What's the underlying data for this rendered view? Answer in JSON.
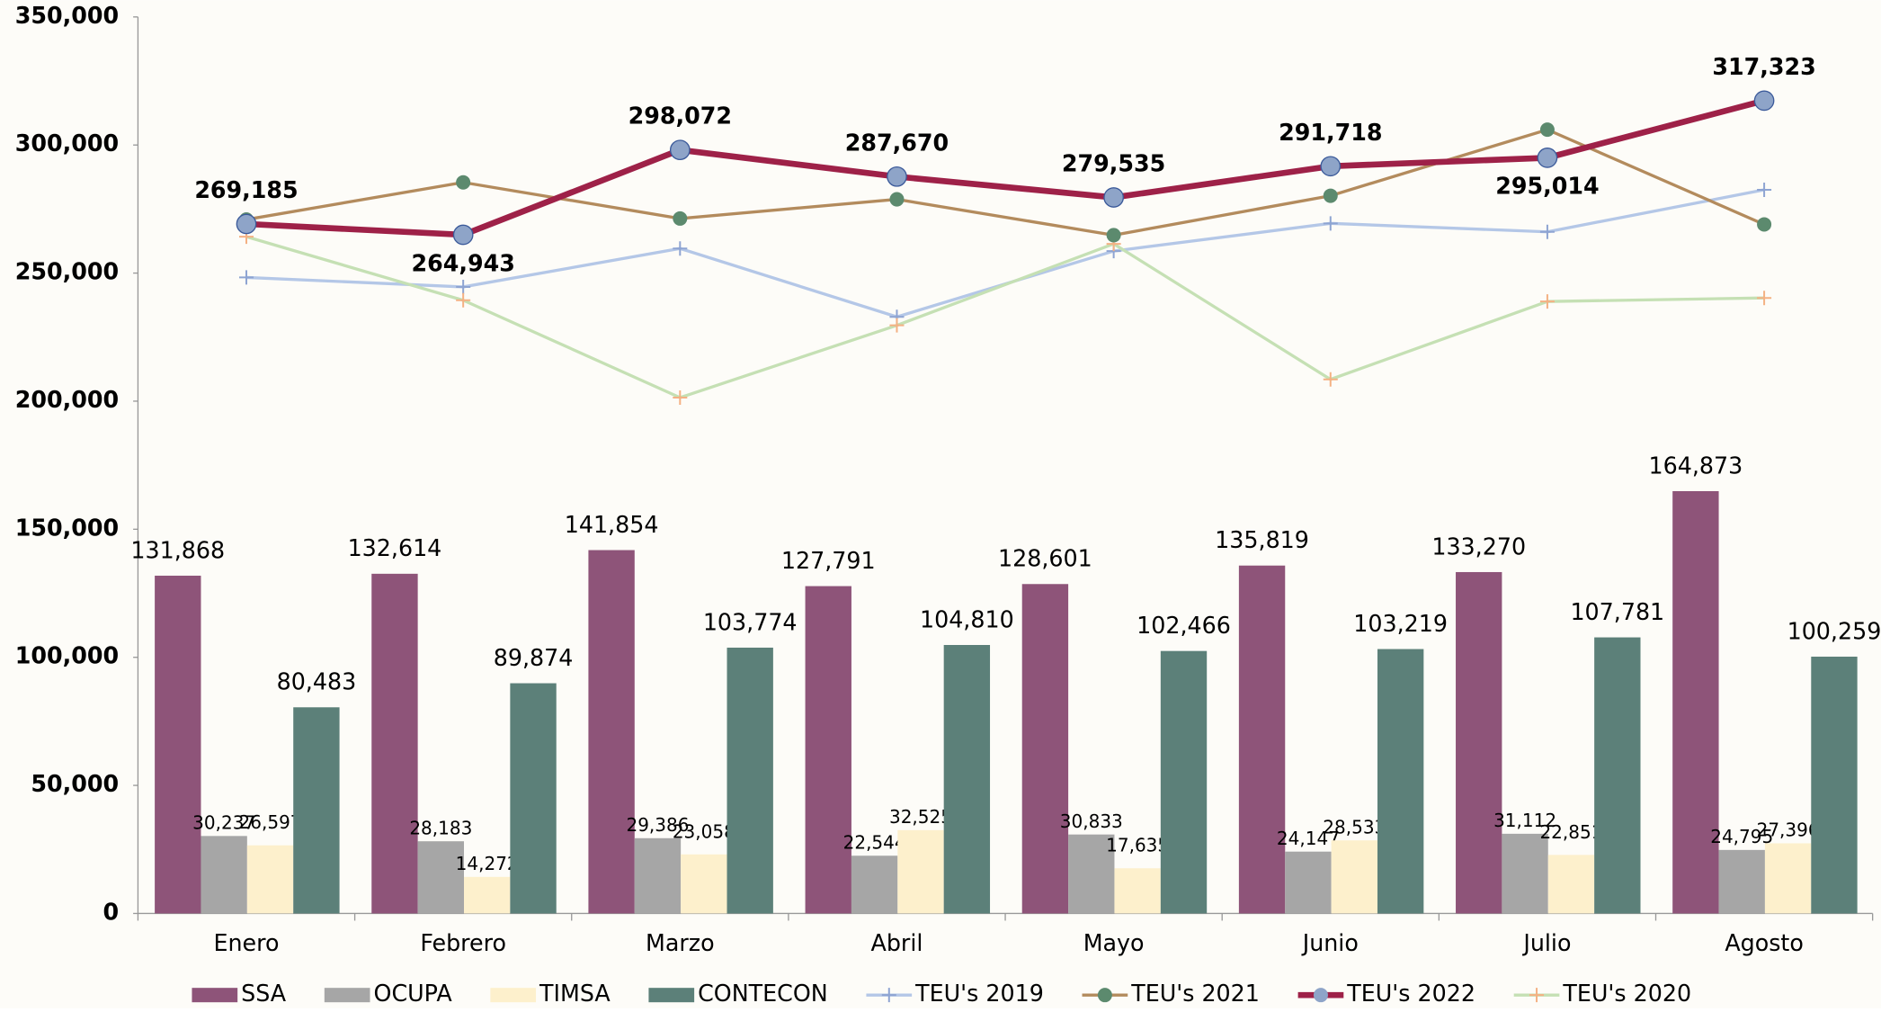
{
  "chart_data": {
    "type": "bar_line",
    "categories": [
      "Enero",
      "Febrero",
      "Marzo",
      "Abril",
      "Mayo",
      "Junio",
      "Julio",
      "Agosto"
    ],
    "ylim": [
      0,
      350000
    ],
    "yticks": [
      0,
      {
        "value": 50000,
        "label": "50,000"
      },
      {
        "value": 100000,
        "label": "100,000"
      },
      {
        "value": 150000,
        "label": "150,000"
      },
      {
        "value": 200000,
        "label": "200,000"
      },
      {
        "value": 250000,
        "label": "250,000"
      },
      {
        "value": 300000,
        "label": "300,000"
      },
      {
        "value": 350000,
        "label": "350,000"
      }
    ],
    "legend": "bottom",
    "series": [
      {
        "name": "SSA",
        "kind": "bar",
        "color": "#8e5479",
        "values": [
          131868,
          132614,
          141854,
          127791,
          128601,
          135819,
          133270,
          164873
        ],
        "value_labels": [
          "131,868",
          "132,614",
          "141,854",
          "127,791",
          "128,601",
          "135,819",
          "133,270",
          "164,873"
        ]
      },
      {
        "name": "OCUPA",
        "kind": "bar",
        "color": "#a6a6a6",
        "values": [
          30237,
          28183,
          29386,
          22544,
          30833,
          24147,
          31112,
          24795
        ],
        "value_labels": [
          "30,237",
          "28,183",
          "29,386",
          "22,544",
          "30,833",
          "24,147",
          "31,112",
          "24,795"
        ]
      },
      {
        "name": "TIMSA",
        "kind": "bar",
        "color": "#fdf0cc",
        "values": [
          26597,
          14272,
          23058,
          32525,
          17635,
          28533,
          22851,
          27396
        ],
        "value_labels": [
          "26,597",
          "14,272",
          "23,058",
          "32,525",
          "17,635",
          "28,533",
          "22,851",
          "27,396"
        ]
      },
      {
        "name": "CONTECON",
        "kind": "bar",
        "color": "#5c8079",
        "values": [
          80483,
          89874,
          103774,
          104810,
          102466,
          103219,
          107781,
          100259
        ],
        "value_labels": [
          "80,483",
          "89,874",
          "103,774",
          "104,810",
          "102,466",
          "103,219",
          "107,781",
          "100,259"
        ]
      },
      {
        "name": "TEU's 2019",
        "kind": "line",
        "color": "#b4c7e7",
        "marker": "plus",
        "marker_color": "#8ea4d2",
        "values": [
          248300,
          244600,
          259600,
          232900,
          258600,
          269400,
          266100,
          282500
        ]
      },
      {
        "name": "TEU's 2021",
        "kind": "line",
        "color": "#b38b5d",
        "marker": "circle",
        "marker_color": "#5c8a6e",
        "values": [
          270900,
          285400,
          271300,
          278800,
          264800,
          280200,
          306000,
          269000
        ]
      },
      {
        "name": "TEU's 2022",
        "kind": "line",
        "color": "#9e2148",
        "width": 5,
        "marker": "circle",
        "marker_color": "#8ea4c8",
        "values": [
          269185,
          264943,
          298072,
          287670,
          279535,
          291718,
          295014,
          317323
        ],
        "value_labels": [
          "269,185",
          "264,943",
          "298,072",
          "287,670",
          "279,535",
          "291,718",
          "295,014",
          "317,323"
        ]
      },
      {
        "name": "TEU's 2020",
        "kind": "line",
        "color": "#c5e0b4",
        "marker": "plus",
        "marker_color": "#f4b183",
        "values": [
          264200,
          239400,
          201400,
          229600,
          261400,
          208500,
          238900,
          240300
        ]
      }
    ]
  }
}
